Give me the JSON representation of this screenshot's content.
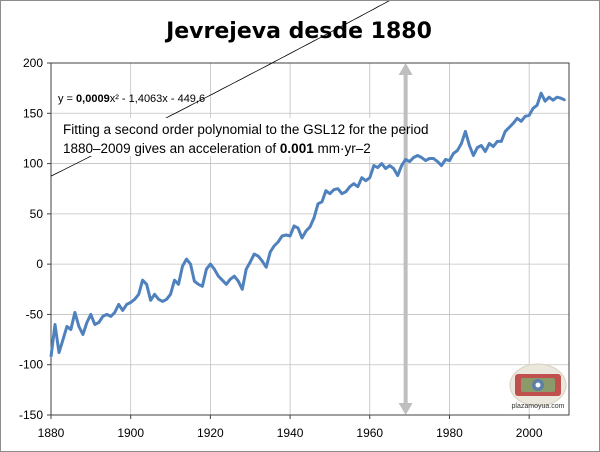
{
  "chart_data": {
    "type": "line",
    "title": "Jevrejeva desde 1880",
    "xlabel": "",
    "ylabel": "",
    "xlim": [
      1880,
      2010
    ],
    "ylim": [
      -150,
      200
    ],
    "xticks": [
      1880,
      1900,
      1920,
      1940,
      1960,
      1980,
      2000
    ],
    "yticks": [
      -150,
      -100,
      -50,
      0,
      50,
      100,
      150,
      200
    ],
    "grid": true,
    "legend": "none",
    "colors": {
      "series": "#4f81bd",
      "trend": "#000000",
      "marker": "#bfbfbf",
      "grid": "#c0c0c0"
    },
    "series": [
      {
        "x": [
          1880,
          1881,
          1882,
          1883,
          1884,
          1885,
          1886,
          1887,
          1888,
          1889,
          1890,
          1891,
          1892,
          1893,
          1894,
          1895,
          1896,
          1897,
          1898,
          1899,
          1900,
          1901,
          1902,
          1903,
          1904,
          1905,
          1906,
          1907,
          1908,
          1909,
          1910,
          1911,
          1912,
          1913,
          1914,
          1915,
          1916,
          1917,
          1918,
          1919,
          1920,
          1921,
          1922,
          1923,
          1924,
          1925,
          1926,
          1927,
          1928,
          1929,
          1930,
          1931,
          1932,
          1933,
          1934,
          1935,
          1936,
          1937,
          1938,
          1939,
          1940,
          1941,
          1942,
          1943,
          1944,
          1945,
          1946,
          1947,
          1948,
          1949,
          1950,
          1951,
          1952,
          1953,
          1954,
          1955,
          1956,
          1957,
          1958,
          1959,
          1960,
          1961,
          1962,
          1963,
          1964,
          1965,
          1966,
          1967,
          1968,
          1969,
          1970,
          1971,
          1972,
          1973,
          1974,
          1975,
          1976,
          1977,
          1978,
          1979,
          1980,
          1981,
          1982,
          1983,
          1984,
          1985,
          1986,
          1987,
          1988,
          1989,
          1990,
          1991,
          1992,
          1993,
          1994,
          1995,
          1996,
          1997,
          1998,
          1999,
          2000,
          2001,
          2002,
          2003,
          2004,
          2005,
          2006,
          2007,
          2008,
          2009
        ],
        "values": [
          -92,
          -60,
          -88,
          -75,
          -62,
          -65,
          -48,
          -62,
          -70,
          -58,
          -50,
          -60,
          -58,
          -52,
          -50,
          -52,
          -48,
          -40,
          -46,
          -40,
          -38,
          -35,
          -30,
          -16,
          -20,
          -36,
          -30,
          -35,
          -37,
          -35,
          -30,
          -16,
          -20,
          -2,
          5,
          0,
          -17,
          -20,
          -22,
          -5,
          0,
          -5,
          -12,
          -16,
          -20,
          -15,
          -12,
          -17,
          -25,
          -5,
          2,
          10,
          8,
          3,
          -3,
          12,
          18,
          22,
          28,
          29,
          28,
          38,
          36,
          26,
          33,
          37,
          46,
          60,
          62,
          73,
          70,
          74,
          75,
          70,
          72,
          77,
          80,
          77,
          86,
          83,
          86,
          98,
          96,
          100,
          95,
          98,
          95,
          88,
          98,
          104,
          102,
          106,
          108,
          106,
          103,
          105,
          105,
          102,
          98,
          104,
          103,
          110,
          113,
          120,
          132,
          118,
          108,
          116,
          118,
          112,
          120,
          117,
          122,
          122,
          132,
          136,
          140,
          145,
          142,
          147,
          148,
          155,
          158,
          170,
          162,
          166,
          163,
          166,
          165,
          163
        ]
      }
    ],
    "trendline": {
      "type": "poly2",
      "a": 0.0009,
      "b": -1.4063,
      "c": -449.6
    },
    "annotations": {
      "equation_parts": [
        "y = ",
        "0,0009",
        "x²",
        " - 1,4063x - 449,6"
      ],
      "line1": "Fitting a second order polynomial to the GSL12 for the period",
      "line2_parts": [
        "1880–2009 gives an acceleration of ",
        "0.001",
        " mm·yr–2"
      ]
    },
    "marker_year": 1969,
    "logo_text": "plazamoyua.com"
  }
}
